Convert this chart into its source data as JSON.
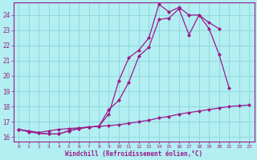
{
  "xlabel": "Windchill (Refroidissement éolien,°C)",
  "xlim": [
    -0.5,
    23.5
  ],
  "ylim": [
    15.7,
    24.8
  ],
  "yticks": [
    16,
    17,
    18,
    19,
    20,
    21,
    22,
    23,
    24
  ],
  "xticks": [
    0,
    1,
    2,
    3,
    4,
    5,
    6,
    7,
    8,
    9,
    10,
    11,
    12,
    13,
    14,
    15,
    16,
    17,
    18,
    19,
    20,
    21,
    22,
    23
  ],
  "bg_color": "#b2eef2",
  "grid_color": "#8dd4d8",
  "line_color": "#9b1a8a",
  "spine_color": "#9b1a8a",
  "line1_x": [
    0,
    1,
    2,
    3,
    4,
    5,
    6,
    7,
    8,
    9,
    10,
    11,
    12,
    13,
    14,
    15,
    16,
    17,
    18,
    19,
    20,
    21,
    22,
    23
  ],
  "line1_y": [
    16.5,
    16.4,
    16.3,
    16.4,
    16.5,
    16.55,
    16.6,
    16.65,
    16.7,
    16.75,
    16.8,
    16.9,
    17.0,
    17.1,
    17.25,
    17.35,
    17.5,
    17.6,
    17.7,
    17.8,
    17.9,
    18.0,
    18.05,
    18.1
  ],
  "line2_x": [
    0,
    1,
    2,
    3,
    4,
    5,
    6,
    7,
    8,
    9,
    10,
    11,
    12,
    13,
    14,
    15,
    16,
    17,
    18,
    19,
    20,
    21,
    22,
    23
  ],
  "line2_y": [
    16.5,
    16.35,
    16.25,
    16.2,
    16.2,
    16.4,
    16.55,
    16.65,
    16.7,
    17.8,
    18.4,
    19.6,
    21.3,
    21.9,
    23.7,
    23.8,
    24.4,
    22.7,
    24.0,
    23.1,
    21.4,
    19.2,
    null,
    null
  ],
  "line3_x": [
    0,
    1,
    2,
    3,
    4,
    5,
    6,
    7,
    8,
    9,
    10,
    11,
    12,
    13,
    14,
    15,
    16,
    17,
    18,
    19,
    20
  ],
  "line3_y": [
    16.5,
    16.35,
    16.25,
    16.2,
    16.2,
    16.4,
    16.55,
    16.65,
    16.7,
    17.5,
    19.7,
    21.2,
    21.7,
    22.5,
    24.7,
    24.2,
    24.5,
    24.0,
    24.0,
    23.5,
    23.1
  ]
}
